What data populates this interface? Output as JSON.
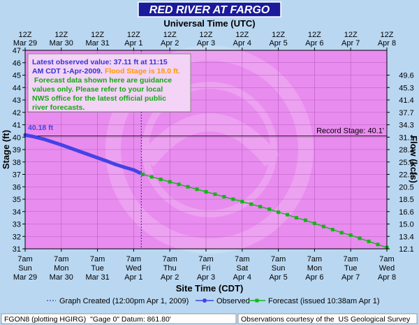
{
  "title": "RED RIVER  AT FARGO",
  "top_axis_title": "Universal Time (UTC)",
  "bottom_axis_title": "Site Time (CDT)",
  "left_axis_title": "Stage (ft)",
  "right_axis_title": "Flow (kcfs)",
  "info": {
    "line1": "Latest observed value: 37.11 ft at 11:15",
    "line2_a": "AM CDT 1-Apr-2009.",
    "line2_b": "Flood Stage is 18.0 ft.",
    "line3": " Forecast data shown here are guidance",
    "line4": "values only. Please refer to your local",
    "line5": "NWS office for the latest official public",
    "line6": "river forecasts."
  },
  "footer": {
    "left": "FGON8 (plotting HGIRG)  \"Gage 0\" Datum: 861.80'",
    "right": "Observations courtesy of the  US Geological Survey"
  },
  "colors": {
    "background": "#b9d7f1",
    "plot": "#e98cef",
    "observed": "#4343e5",
    "forecast": "#16b316",
    "title_bar": "#1a1a9a",
    "info_blue": "#3434d4",
    "info_orange": "#ff9900",
    "info_green": "#11aa11",
    "guide": "#2222aa"
  },
  "chart_data": {
    "type": "line",
    "title": "RED RIVER  AT FARGO",
    "xlabel": "Site Time (CDT)",
    "ylabel": "Stage (ft)",
    "y2label": "Flow (kcfs)",
    "x2label": "Universal Time (UTC)",
    "ylim": [
      31,
      47
    ],
    "xlim": [
      "Mar 29 7am",
      "Apr 8 7am"
    ],
    "y_ticks": [
      "31",
      "32",
      "33",
      "34",
      "35",
      "36",
      "37",
      "38",
      "39",
      "40",
      "41",
      "42",
      "43",
      "44",
      "45",
      "46",
      "47"
    ],
    "y2_ticks": [
      {
        "label": "12.1",
        "stage": 31
      },
      {
        "label": "13.4",
        "stage": 32
      },
      {
        "label": "15.0",
        "stage": 33
      },
      {
        "label": "16.6",
        "stage": 34
      },
      {
        "label": "18.5",
        "stage": 35
      },
      {
        "label": "20.5",
        "stage": 36
      },
      {
        "label": "22.9",
        "stage": 37
      },
      {
        "label": "25.6",
        "stage": 38
      },
      {
        "label": "28.3",
        "stage": 39
      },
      {
        "label": "31.1",
        "stage": 40
      },
      {
        "label": "34.3",
        "stage": 41
      },
      {
        "label": "37.7",
        "stage": 42
      },
      {
        "label": "41.4",
        "stage": 43
      },
      {
        "label": "45.3",
        "stage": 44
      },
      {
        "label": "49.6",
        "stage": 45
      }
    ],
    "top_ticks": [
      {
        "top": "12Z",
        "bottom": "Mar 29"
      },
      {
        "top": "12Z",
        "bottom": "Mar 30"
      },
      {
        "top": "12Z",
        "bottom": "Mar 31"
      },
      {
        "top": "12Z",
        "bottom": "Apr 1"
      },
      {
        "top": "12Z",
        "bottom": "Apr 2"
      },
      {
        "top": "12Z",
        "bottom": "Apr 3"
      },
      {
        "top": "12Z",
        "bottom": "Apr 4"
      },
      {
        "top": "12Z",
        "bottom": "Apr 5"
      },
      {
        "top": "12Z",
        "bottom": "Apr 6"
      },
      {
        "top": "12Z",
        "bottom": "Apr 7"
      },
      {
        "top": "12Z",
        "bottom": "Apr 8"
      }
    ],
    "bottom_ticks": [
      {
        "time": "7am",
        "day": "Sun",
        "date": "Mar 29"
      },
      {
        "time": "7am",
        "day": "Mon",
        "date": "Mar 30"
      },
      {
        "time": "7am",
        "day": "Tue",
        "date": "Mar 31"
      },
      {
        "time": "7am",
        "day": "Wed",
        "date": "Apr 1"
      },
      {
        "time": "7am",
        "day": "Thu",
        "date": "Apr 2"
      },
      {
        "time": "7am",
        "day": "Fri",
        "date": "Apr 3"
      },
      {
        "time": "7am",
        "day": "Sat",
        "date": "Apr 4"
      },
      {
        "time": "7am",
        "day": "Sun",
        "date": "Apr 5"
      },
      {
        "time": "7am",
        "day": "Mon",
        "date": "Apr 6"
      },
      {
        "time": "7am",
        "day": "Tue",
        "date": "Apr 7"
      },
      {
        "time": "7am",
        "day": "Wed",
        "date": "Apr 8"
      }
    ],
    "record_stage": {
      "value": 40.1,
      "label": "Record Stage: 40.1'"
    },
    "graph_created_day": 3.21,
    "series": [
      {
        "name": "Observed",
        "start_label": "40.18 ft",
        "points": [
          [
            0,
            40.18
          ],
          [
            0.25,
            40.03
          ],
          [
            0.5,
            39.85
          ],
          [
            0.75,
            39.62
          ],
          [
            1.0,
            39.38
          ],
          [
            1.25,
            39.12
          ],
          [
            1.5,
            38.86
          ],
          [
            1.75,
            38.6
          ],
          [
            2.0,
            38.34
          ],
          [
            2.25,
            38.08
          ],
          [
            2.5,
            37.8
          ],
          [
            2.75,
            37.57
          ],
          [
            3.0,
            37.36
          ],
          [
            3.18,
            37.11
          ]
        ]
      },
      {
        "name": "Forecast (issued 10:38am Apr 1)",
        "points": [
          [
            3.25,
            37.0
          ],
          [
            3.5,
            36.8
          ],
          [
            3.75,
            36.6
          ],
          [
            4.0,
            36.4
          ],
          [
            4.25,
            36.2
          ],
          [
            4.5,
            36.0
          ],
          [
            4.75,
            35.8
          ],
          [
            5.0,
            35.6
          ],
          [
            5.25,
            35.4
          ],
          [
            5.5,
            35.2
          ],
          [
            5.75,
            35.0
          ],
          [
            6.0,
            34.8
          ],
          [
            6.25,
            34.6
          ],
          [
            6.5,
            34.4
          ],
          [
            6.75,
            34.2
          ],
          [
            7.0,
            33.95
          ],
          [
            7.25,
            33.75
          ],
          [
            7.5,
            33.5
          ],
          [
            7.75,
            33.3
          ],
          [
            8.0,
            33.05
          ],
          [
            8.25,
            32.8
          ],
          [
            8.5,
            32.55
          ],
          [
            8.75,
            32.3
          ],
          [
            9.0,
            32.1
          ],
          [
            9.25,
            31.85
          ],
          [
            9.5,
            31.6
          ],
          [
            9.75,
            31.35
          ],
          [
            10.0,
            31.1
          ]
        ]
      }
    ],
    "legend": [
      {
        "label": "Graph Created (12:00pm Apr 1, 2009)",
        "style": "dotted"
      },
      {
        "label": "Observed",
        "style": "observed"
      },
      {
        "label": "Forecast (issued 10:38am Apr 1)",
        "style": "forecast"
      }
    ]
  }
}
